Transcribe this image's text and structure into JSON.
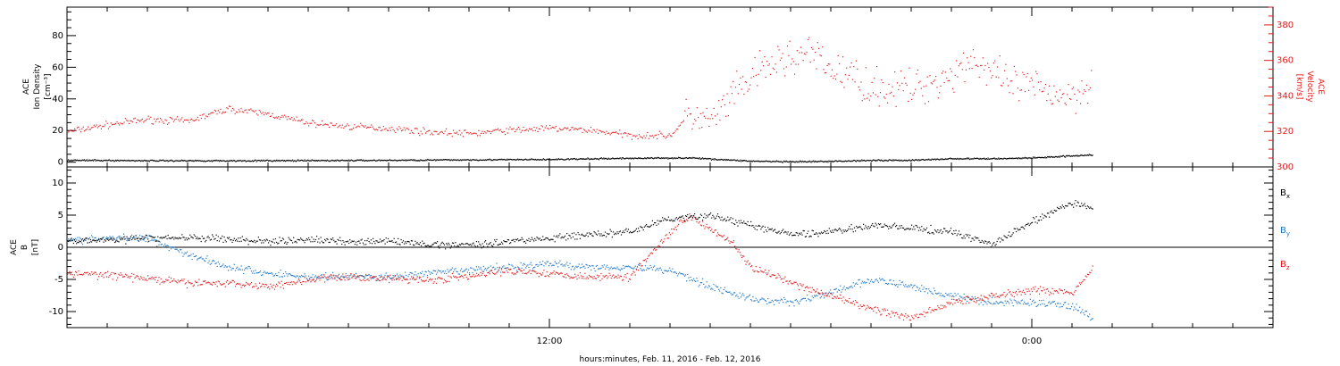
{
  "chart_data": [
    {
      "type": "scatter",
      "panel": "top",
      "ylabel_left": [
        "ACE",
        "Ion Density",
        "[cm⁻³]"
      ],
      "ylabel_right": [
        "ACE",
        "Velocity",
        "[km/s]"
      ],
      "ylim_left": [
        -3,
        98
      ],
      "ylim_right": [
        300,
        390
      ],
      "yticks_left": [
        0,
        20,
        40,
        60,
        80
      ],
      "yticks_right": [
        300,
        320,
        340,
        360,
        380
      ],
      "colors": {
        "density": "#000000",
        "velocity": "#e31a1c"
      },
      "series": [
        {
          "name": "density",
          "color": "#000000",
          "axis": "left",
          "x_hours": [
            0,
            2,
            4,
            6,
            8,
            10,
            12,
            14,
            15.5,
            17,
            18,
            19,
            20,
            21,
            22,
            23,
            24,
            25.5
          ],
          "values": [
            1.5,
            1.3,
            1.2,
            1.3,
            1.5,
            1.8,
            2.0,
            2.8,
            3.0,
            1.0,
            0.5,
            0.8,
            1.5,
            1.5,
            2.5,
            2.5,
            3.0,
            5.0
          ]
        },
        {
          "name": "velocity",
          "color": "#e31a1c",
          "axis": "right",
          "x_hours": [
            0,
            1,
            2,
            3,
            4,
            5,
            6,
            7,
            8,
            9,
            10,
            11,
            12,
            13,
            14,
            15,
            15.5,
            16,
            16.5,
            17,
            17.5,
            18,
            18.5,
            19,
            19.5,
            20,
            21,
            22,
            22.5,
            23,
            23.5,
            24,
            25,
            25.5
          ],
          "values": [
            320,
            324,
            327,
            326,
            333,
            330,
            325,
            323,
            322,
            320,
            319,
            321,
            322,
            321,
            318,
            318,
            330,
            325,
            338,
            350,
            358,
            362,
            364,
            355,
            352,
            345,
            344,
            352,
            362,
            352,
            346,
            345,
            340,
            350
          ]
        }
      ]
    },
    {
      "type": "scatter",
      "panel": "bottom",
      "ylabel_left": [
        "ACE",
        "B",
        "[nT]"
      ],
      "ylim": [
        -12.5,
        12.5
      ],
      "yticks": [
        -10,
        -5,
        0,
        5,
        10
      ],
      "legend": [
        "Bx",
        "By",
        "Bz"
      ],
      "legend_placement": "right",
      "series": [
        {
          "name": "Bx",
          "color": "#000000",
          "x_hours": [
            0,
            1,
            2,
            3,
            4,
            5,
            6,
            7,
            8,
            9,
            10,
            11,
            12,
            13,
            14,
            15,
            16,
            17,
            18,
            19,
            20,
            21,
            22,
            23,
            24,
            25,
            25.5
          ],
          "values": [
            1.0,
            1.2,
            1.5,
            1.6,
            1.3,
            1.0,
            1.2,
            1.0,
            1.0,
            0.5,
            0.5,
            1.0,
            1.5,
            2.0,
            2.5,
            4.5,
            5.0,
            3.5,
            2.0,
            2.5,
            3.5,
            3.0,
            2.5,
            0.5,
            4.0,
            7.0,
            6.0
          ]
        },
        {
          "name": "By",
          "color": "#1f78c8",
          "x_hours": [
            0,
            1,
            2,
            3,
            4,
            5,
            6,
            7,
            8,
            9,
            10,
            11,
            12,
            13,
            14,
            15,
            16,
            17,
            18,
            19,
            20,
            21,
            22,
            23,
            24,
            25,
            25.5
          ],
          "values": [
            1.0,
            1.5,
            1.5,
            -1.0,
            -3.0,
            -4.0,
            -4.5,
            -4.5,
            -4.5,
            -4.0,
            -3.5,
            -3.0,
            -2.5,
            -3.0,
            -3.0,
            -3.5,
            -6.0,
            -8.0,
            -8.5,
            -7.0,
            -5.0,
            -6.0,
            -7.5,
            -8.5,
            -8.5,
            -9.0,
            -11.0
          ]
        },
        {
          "name": "Bz",
          "color": "#e31a1c",
          "x_hours": [
            0,
            1,
            2,
            3,
            4,
            5,
            6,
            7,
            8,
            9,
            10,
            11,
            12,
            13,
            14,
            15,
            15.5,
            16,
            16.5,
            17,
            18,
            19,
            20,
            21,
            22,
            23,
            24,
            25,
            25.5
          ],
          "values": [
            -4.0,
            -4.2,
            -4.8,
            -5.5,
            -5.5,
            -6.0,
            -5.0,
            -4.5,
            -4.8,
            -5.0,
            -4.5,
            -3.5,
            -4.0,
            -4.5,
            -4.5,
            2.5,
            5.0,
            3.0,
            1.0,
            -3.0,
            -5.5,
            -7.5,
            -9.5,
            -11.0,
            -8.5,
            -7.5,
            -6.5,
            -7.0,
            -3.0
          ]
        }
      ]
    }
  ],
  "axes": {
    "x_range_hours": [
      0,
      30
    ],
    "x_tick_labels": [
      {
        "hour": 12,
        "label": "12:00"
      },
      {
        "hour": 24,
        "label": "0:00"
      }
    ],
    "xlabel": "hours:minutes, Feb. 11, 2016 - Feb. 12, 2016"
  }
}
